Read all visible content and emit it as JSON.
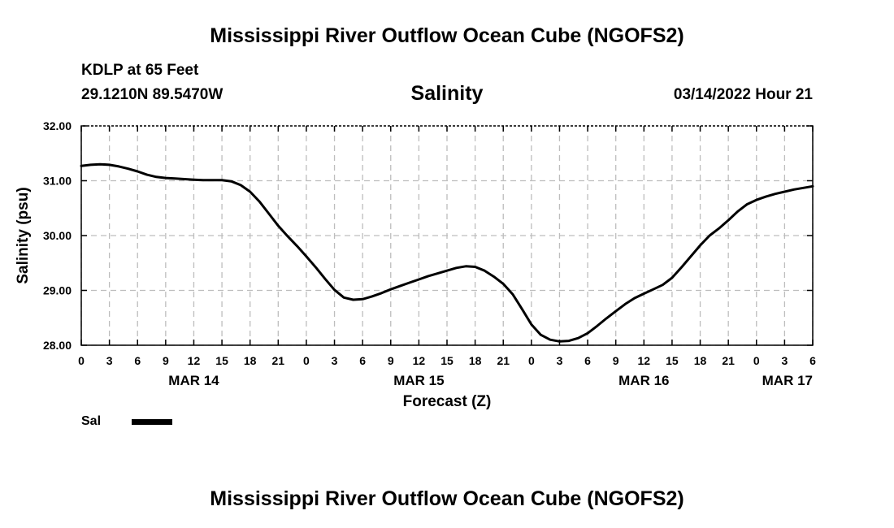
{
  "header": {
    "title": "Mississippi River Outflow Ocean Cube (NGOFS2)",
    "station": "KDLP at 65 Feet",
    "coords": "29.1210N  89.5470W",
    "variable": "Salinity",
    "datetime": "03/14/2022 Hour 21"
  },
  "footer": {
    "title": "Mississippi River Outflow Ocean Cube (NGOFS2)"
  },
  "legend": {
    "label": "Sal",
    "color": "#000000"
  },
  "chart_data": {
    "type": "line",
    "title": "Salinity",
    "xlabel": "Forecast (Z)",
    "ylabel": "Salinity (psu)",
    "xlim": [
      0,
      78
    ],
    "ylim": [
      28.0,
      32.0
    ],
    "yticks": [
      "28.00",
      "29.00",
      "30.00",
      "31.00",
      "32.00"
    ],
    "xtick_labels": [
      "0",
      "3",
      "6",
      "9",
      "12",
      "15",
      "18",
      "21",
      "0",
      "3",
      "6",
      "9",
      "12",
      "15",
      "18",
      "21",
      "0",
      "3",
      "6",
      "9",
      "12",
      "15",
      "18",
      "21",
      "0",
      "3",
      "6"
    ],
    "date_labels": [
      {
        "hour": 12,
        "label": "MAR 14"
      },
      {
        "hour": 36,
        "label": "MAR 15"
      },
      {
        "hour": 60,
        "label": "MAR 16"
      },
      {
        "hour": 78,
        "label": "MAR 17"
      }
    ],
    "grid": true,
    "series": [
      {
        "name": "Sal",
        "x": [
          0,
          1,
          2,
          3,
          4,
          5,
          6,
          7,
          8,
          9,
          10,
          11,
          12,
          13,
          14,
          15,
          16,
          17,
          18,
          19,
          20,
          21,
          22,
          23,
          24,
          25,
          26,
          27,
          28,
          29,
          30,
          31,
          32,
          33,
          34,
          35,
          36,
          37,
          38,
          39,
          40,
          41,
          42,
          43,
          44,
          45,
          46,
          47,
          48,
          49,
          50,
          51,
          52,
          53,
          54,
          55,
          56,
          57,
          58,
          59,
          60,
          61,
          62,
          63,
          64,
          65,
          66,
          67,
          68,
          69,
          70,
          71,
          72,
          73,
          74,
          75,
          76,
          77,
          78
        ],
        "y": [
          31.27,
          31.29,
          31.3,
          31.29,
          31.26,
          31.22,
          31.17,
          31.11,
          31.07,
          31.05,
          31.04,
          31.03,
          31.02,
          31.01,
          31.01,
          31.01,
          30.99,
          30.92,
          30.8,
          30.62,
          30.4,
          30.18,
          29.99,
          29.81,
          29.62,
          29.42,
          29.21,
          29.01,
          28.87,
          28.83,
          28.84,
          28.89,
          28.95,
          29.02,
          29.08,
          29.14,
          29.2,
          29.26,
          29.31,
          29.36,
          29.41,
          29.44,
          29.43,
          29.36,
          29.25,
          29.12,
          28.93,
          28.66,
          28.38,
          28.19,
          28.1,
          28.07,
          28.08,
          28.13,
          28.22,
          28.35,
          28.49,
          28.62,
          28.75,
          28.86,
          28.94,
          29.02,
          29.1,
          29.23,
          29.42,
          29.62,
          29.82,
          30.0,
          30.13,
          30.28,
          30.44,
          30.57,
          30.65,
          30.71,
          30.76,
          30.8,
          30.84,
          30.87,
          30.9
        ]
      }
    ]
  }
}
